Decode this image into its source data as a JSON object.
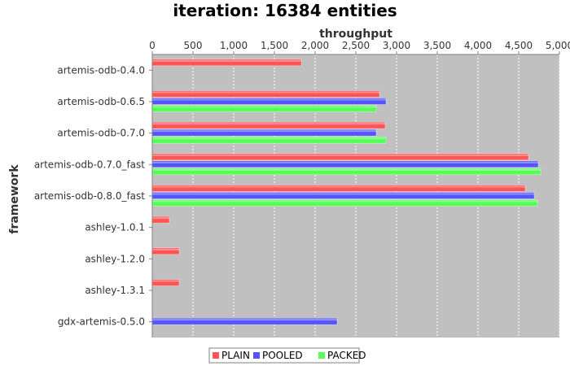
{
  "chart_data": {
    "type": "bar",
    "orientation": "horizontal",
    "title": "iteration: 16384 entities",
    "xlabel": "throughput",
    "ylabel": "framework",
    "xlim": [
      0,
      5000
    ],
    "x_ticks": [
      0,
      500,
      1000,
      1500,
      2000,
      2500,
      3000,
      3500,
      4000,
      4500,
      5000
    ],
    "x_tick_labels": [
      "0",
      "500",
      "1,000",
      "1,500",
      "2,000",
      "2,500",
      "3,000",
      "3,500",
      "4,000",
      "4,500",
      "5,000"
    ],
    "x_axis_position": "top",
    "grid": true,
    "legend_position": "bottom",
    "categories": [
      "artemis-odb-0.4.0",
      "artemis-odb-0.6.5",
      "artemis-odb-0.7.0",
      "artemis-odb-0.7.0_fast",
      "artemis-odb-0.8.0_fast",
      "ashley-1.0.1",
      "ashley-1.2.0",
      "ashley-1.3.1",
      "gdx-artemis-0.5.0"
    ],
    "series": [
      {
        "name": "PLAIN",
        "color": "#ff5555",
        "values": [
          1830,
          2790,
          2860,
          4620,
          4580,
          210,
          330,
          330,
          null
        ]
      },
      {
        "name": "POOLED",
        "color": "#5555ff",
        "values": [
          null,
          2870,
          2750,
          4740,
          4690,
          null,
          null,
          null,
          2270
        ]
      },
      {
        "name": "PACKED",
        "color": "#55ff55",
        "values": [
          null,
          2750,
          2870,
          4770,
          4730,
          null,
          null,
          null,
          null
        ]
      }
    ]
  }
}
